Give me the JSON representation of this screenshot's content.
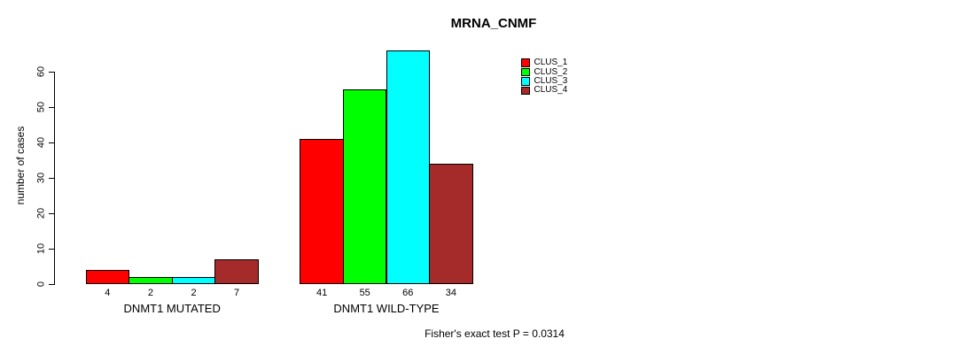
{
  "chart_data": {
    "type": "bar",
    "title": "MRNA_CNMF",
    "ylabel": "number of cases",
    "xlabel": "",
    "annotation": "Fisher's exact test P = 0.0314",
    "categories": [
      "DNMT1 MUTATED",
      "DNMT1 WILD-TYPE"
    ],
    "series": [
      {
        "name": "CLUS_1",
        "color": "#ff0000",
        "values": [
          4,
          41
        ]
      },
      {
        "name": "CLUS_2",
        "color": "#00ff00",
        "values": [
          2,
          55
        ]
      },
      {
        "name": "CLUS_3",
        "color": "#00ffff",
        "values": [
          2,
          66
        ]
      },
      {
        "name": "CLUS_4",
        "color": "#a52a2a",
        "values": [
          7,
          34
        ]
      }
    ],
    "bar_value_labels": [
      [
        4,
        2,
        2,
        7
      ],
      [
        41,
        55,
        66,
        34
      ]
    ],
    "yticks": [
      0,
      10,
      20,
      30,
      40,
      50,
      60
    ],
    "ylim": [
      0,
      66
    ],
    "grid": false,
    "legend_position": "top-right",
    "background_color": "#ffffff",
    "text_color": "#000000"
  }
}
